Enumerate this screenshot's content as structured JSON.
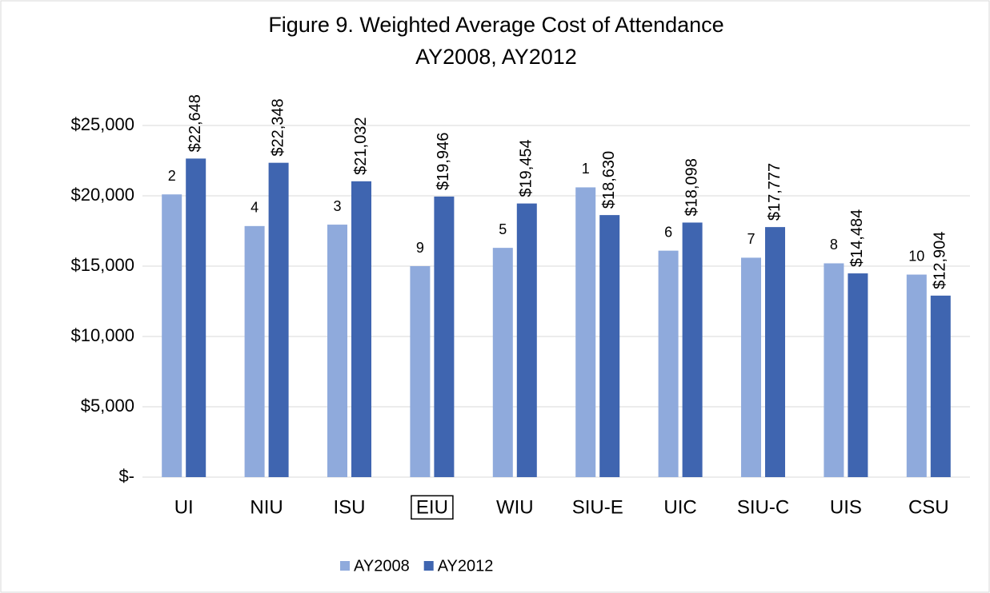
{
  "chart_data": {
    "type": "bar",
    "title": "Figure 9. Weighted Average Cost of Attendance",
    "subtitle": "AY2008, AY2012",
    "categories": [
      "UI",
      "NIU",
      "ISU",
      "EIU",
      "WIU",
      "SIU-E",
      "UIC",
      "SIU-C",
      "UIS",
      "CSU"
    ],
    "highlighted_category": 3,
    "series": [
      {
        "name": "AY2008",
        "color": "#8faadc",
        "values": [
          20100,
          17850,
          17950,
          15000,
          16300,
          20600,
          16100,
          15600,
          15200,
          14400
        ],
        "rank_labels": [
          2,
          4,
          3,
          9,
          5,
          1,
          6,
          7,
          8,
          10
        ]
      },
      {
        "name": "AY2012",
        "color": "#3f65b0",
        "values": [
          22648,
          22348,
          21032,
          19946,
          19454,
          18630,
          18098,
          17777,
          14484,
          12904
        ],
        "value_labels": [
          "$22,648",
          "$22,348",
          "$21,032",
          "$19,946",
          "$19,454",
          "$18,630",
          "$18,098",
          "$17,777",
          "$14,484",
          "$12,904"
        ]
      }
    ],
    "ylim": [
      0,
      25000
    ],
    "yticks": [
      {
        "value": 0,
        "label": "$-"
      },
      {
        "value": 5000,
        "label": "$5,000"
      },
      {
        "value": 10000,
        "label": "$10,000"
      },
      {
        "value": 15000,
        "label": "$15,000"
      },
      {
        "value": 20000,
        "label": "$20,000"
      },
      {
        "value": 25000,
        "label": "$25,000"
      }
    ],
    "grid": true,
    "legend": "bottom"
  }
}
